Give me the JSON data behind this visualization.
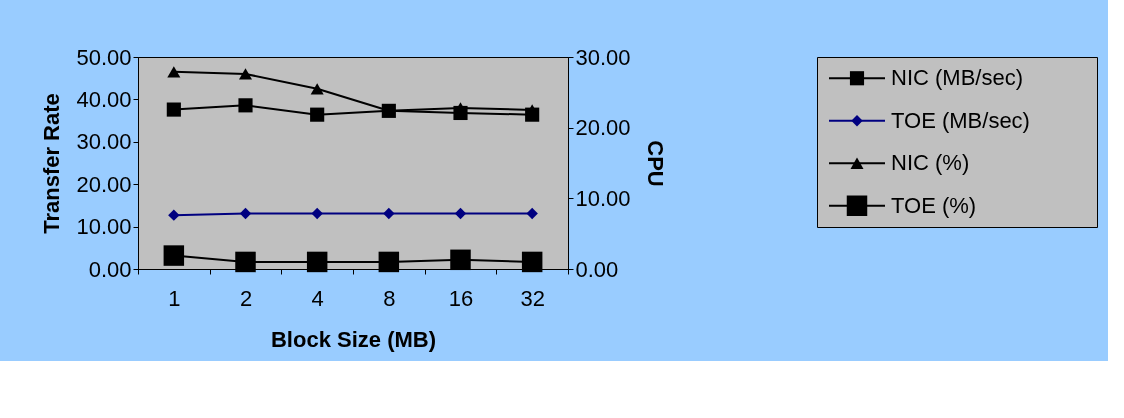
{
  "chart_data": {
    "type": "line",
    "xlabel": "Block Size (MB)",
    "ylabel": "Transfer Rate",
    "y2label": "CPU",
    "categories": [
      "1",
      "2",
      "4",
      "8",
      "16",
      "32"
    ],
    "ylim": [
      0,
      50
    ],
    "yticks": [
      {
        "value": 0,
        "label": "0.00"
      },
      {
        "value": 10,
        "label": "10.00"
      },
      {
        "value": 20,
        "label": "20.00"
      },
      {
        "value": 30,
        "label": "30.00"
      },
      {
        "value": 40,
        "label": "40.00"
      },
      {
        "value": 50,
        "label": "50.00"
      }
    ],
    "y2lim": [
      0,
      30
    ],
    "y2ticks": [
      {
        "value": 0,
        "label": "0.00"
      },
      {
        "value": 10,
        "label": "10.00"
      },
      {
        "value": 20,
        "label": "20.00"
      },
      {
        "value": 30,
        "label": "30.00"
      }
    ],
    "grid": false,
    "legend": "right",
    "series": [
      {
        "name": "NIC (MB/sec)",
        "color": "#000000",
        "marker": "square",
        "values": [
          37.6,
          38.6,
          36.4,
          37.3,
          36.8,
          36.4
        ]
      },
      {
        "name": "TOE (MB/sec)",
        "color": "#000080",
        "marker": "diamond",
        "values": [
          12.7,
          13.1,
          13.1,
          13.1,
          13.1,
          13.1
        ]
      },
      {
        "name": "NIC (%)",
        "color": "#000000",
        "marker": "triangle",
        "axis": "y2",
        "values": [
          27.9,
          27.6,
          25.5,
          22.4,
          22.8,
          22.5
        ]
      },
      {
        "name": "TOE (%)",
        "color": "#000000",
        "marker": "square",
        "axis": "y2",
        "values": [
          1.9,
          1.0,
          1.0,
          1.0,
          1.3,
          1.0
        ]
      }
    ]
  }
}
